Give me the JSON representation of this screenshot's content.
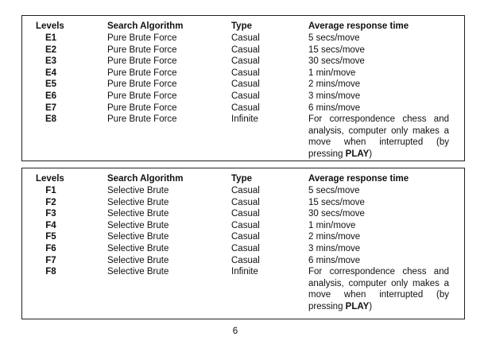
{
  "tables": [
    {
      "headers": [
        "Levels",
        "Search Algorithm",
        "Type",
        "Average response time"
      ],
      "rows": [
        [
          "E1",
          "Pure Brute Force",
          "Casual",
          "5 secs/move"
        ],
        [
          "E2",
          "Pure Brute Force",
          "Casual",
          "15 secs/move"
        ],
        [
          "E3",
          "Pure Brute Force",
          "Casual",
          "30 secs/move"
        ],
        [
          "E4",
          "Pure Brute Force",
          "Casual",
          "1 min/move"
        ],
        [
          "E5",
          "Pure Brute Force",
          "Casual",
          "2 mins/move"
        ],
        [
          "E6",
          "Pure Brute Force",
          "Casual",
          "3 mins/move"
        ],
        [
          "E7",
          "Pure Brute Force",
          "Casual",
          "6 mins/move"
        ],
        [
          "E8",
          "Pure Brute Force",
          "Infinite",
          {
            "text": "For correspondence chess and analysis, computer only makes a move when interrupted (by pressing",
            "bold": "PLAY",
            "tail": ")"
          }
        ]
      ]
    },
    {
      "headers": [
        "Levels",
        "Search Algorithm",
        "Type",
        "Average response time"
      ],
      "rows": [
        [
          "F1",
          "Selective Brute",
          "Casual",
          "5 secs/move"
        ],
        [
          "F2",
          "Selective Brute",
          "Casual",
          "15 secs/move"
        ],
        [
          "F3",
          "Selective Brute",
          "Casual",
          "30 secs/move"
        ],
        [
          "F4",
          "Selective Brute",
          "Casual",
          "1 min/move"
        ],
        [
          "F5",
          "Selective Brute",
          "Casual",
          "2 mins/move"
        ],
        [
          "F6",
          "Selective Brute",
          "Casual",
          "3 mins/move"
        ],
        [
          "F7",
          "Selective Brute",
          "Casual",
          "6 mins/move"
        ],
        [
          "F8",
          "Selective Brute",
          "Infinite",
          {
            "text": "For correspondence chess and analysis, computer only makes a move when interrupted (by pressing",
            "bold": "PLAY",
            "tail": ")"
          }
        ]
      ]
    }
  ],
  "page_number": "6"
}
